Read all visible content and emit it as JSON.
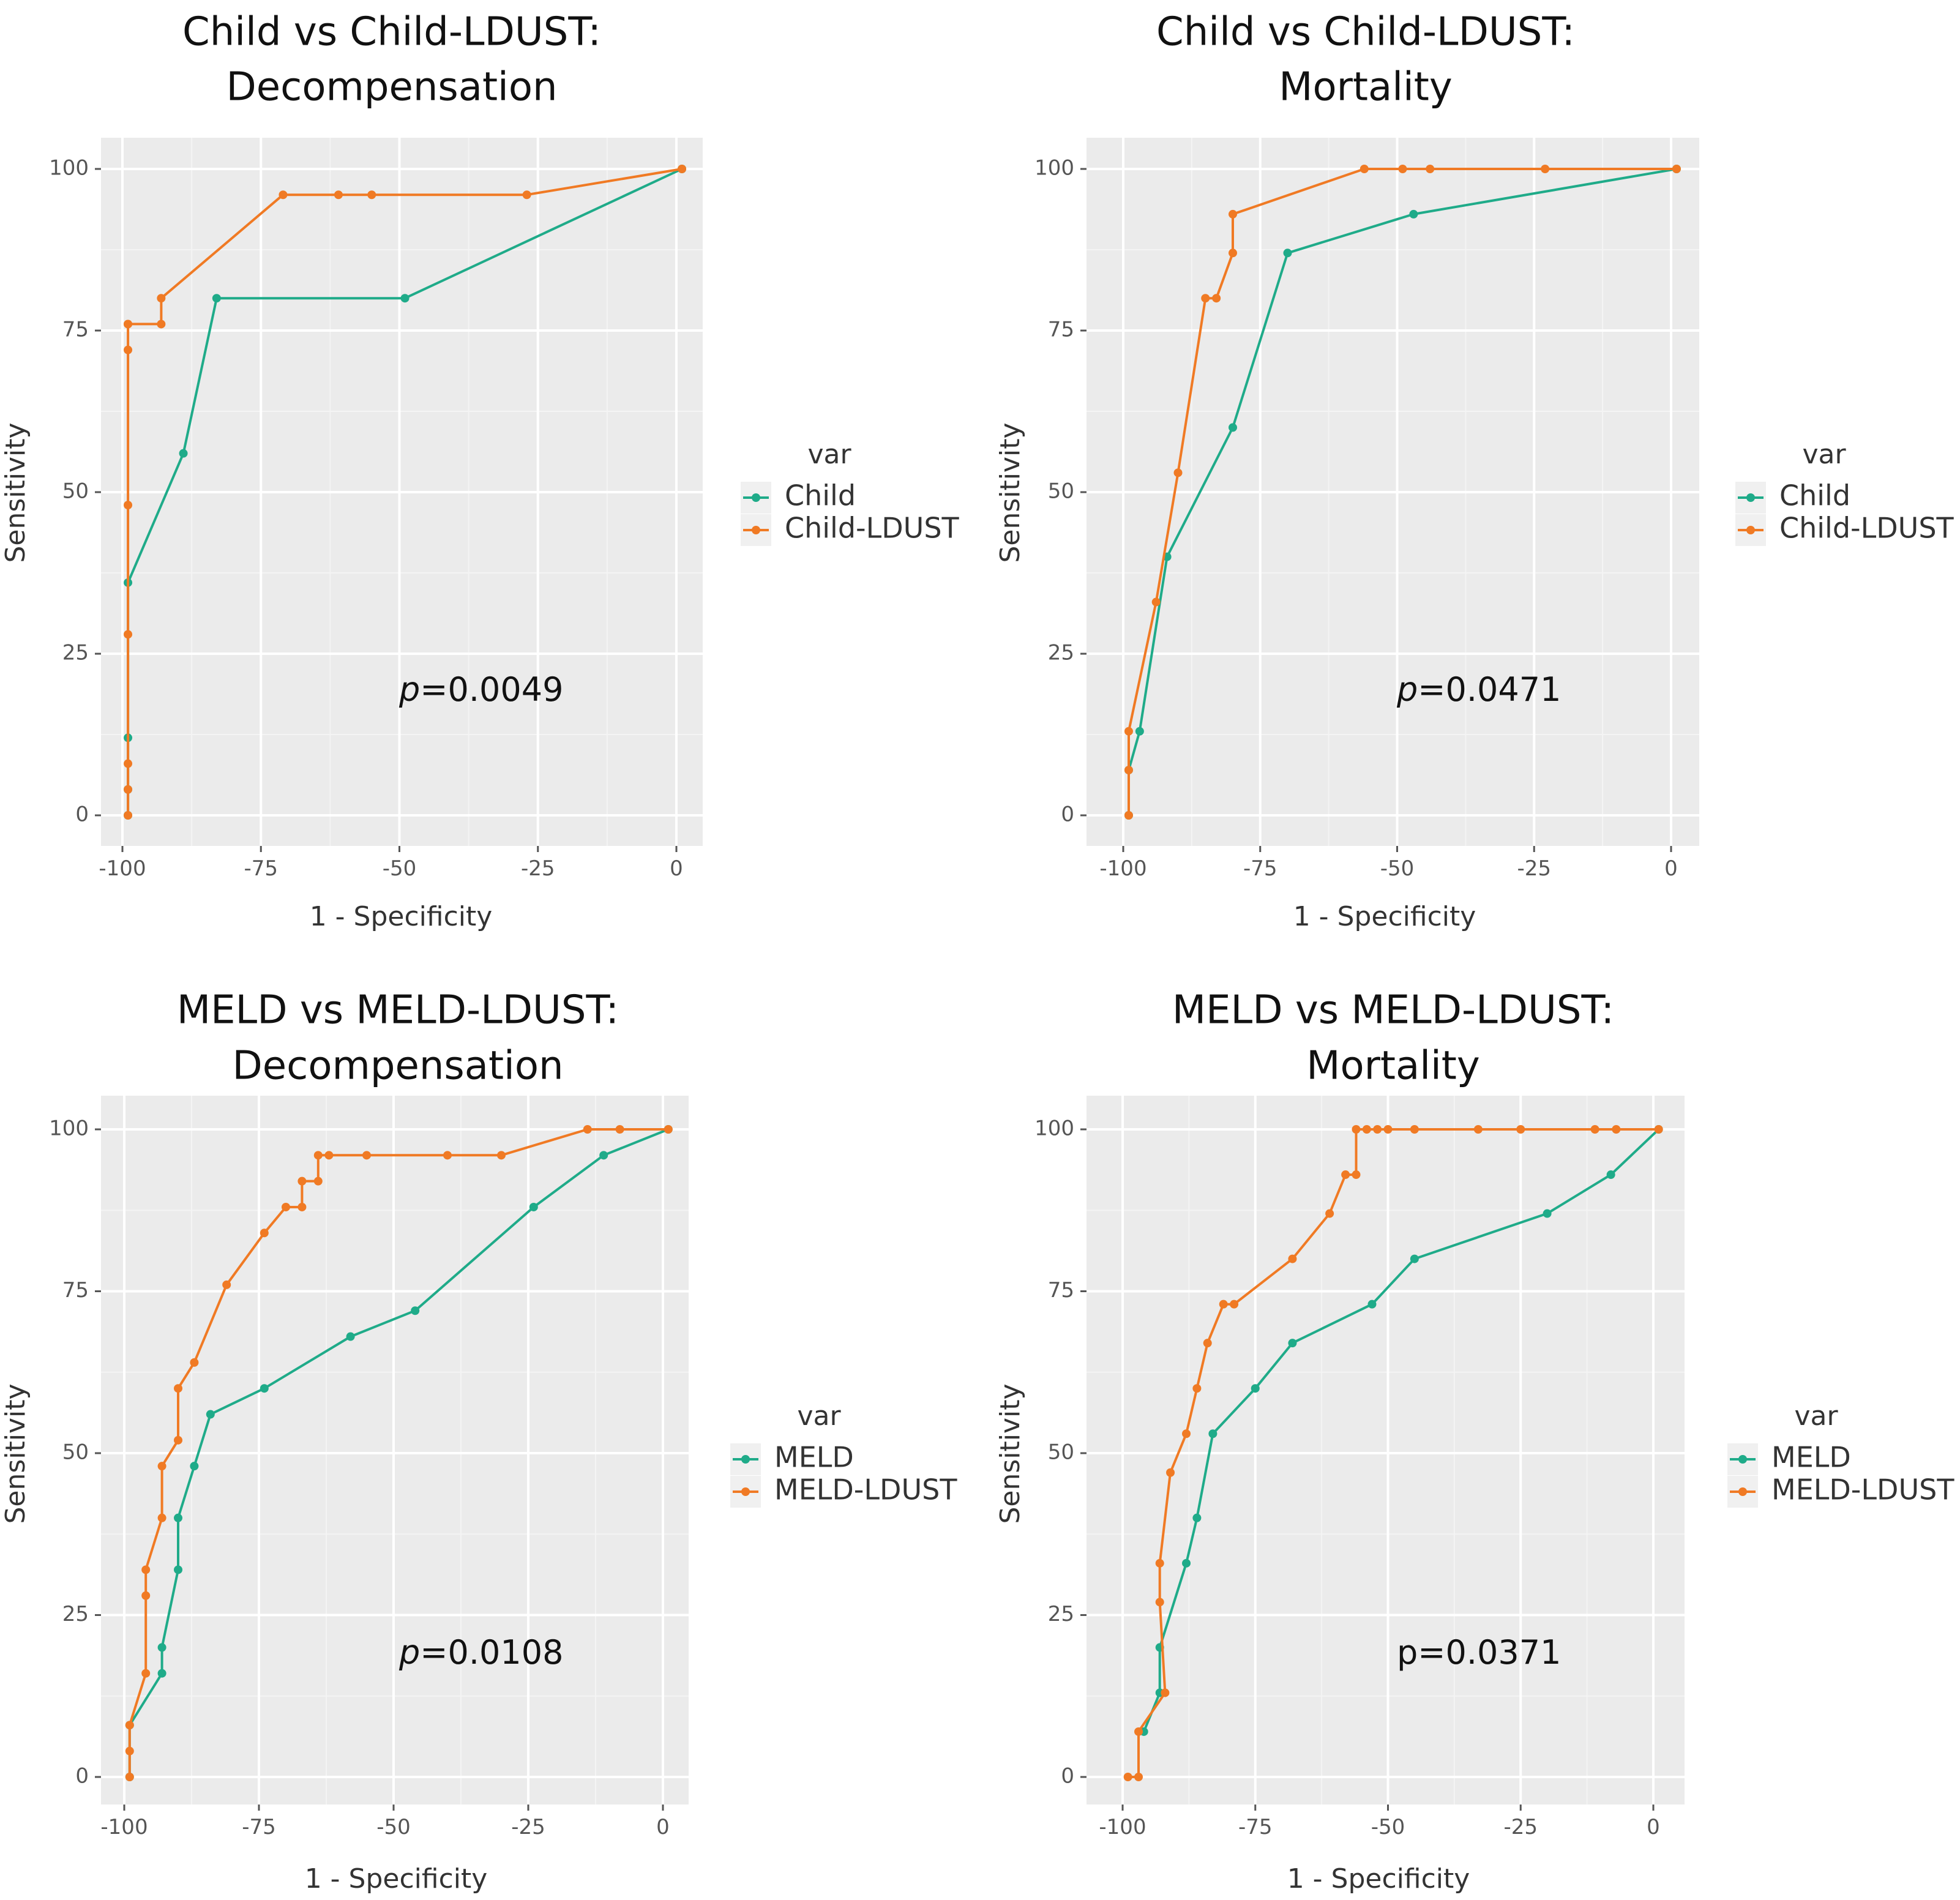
{
  "colors": {
    "series1": "#1fab89",
    "series2": "#f07a24",
    "panel_bg": "#ebebeb",
    "grid_major": "#ffffff",
    "grid_minor": "#f4f4f4"
  },
  "chart_data": [
    {
      "type": "line",
      "title": [
        "Child vs Child-LDUST:",
        "Decompensation"
      ],
      "xlabel": "1 - Specificity",
      "ylabel": "Sensitivity",
      "xlim": [
        -100,
        0
      ],
      "ylim": [
        0,
        100
      ],
      "xticks": [
        -100,
        -75,
        -50,
        -25,
        0
      ],
      "yticks": [
        0,
        25,
        50,
        75,
        100
      ],
      "legend_title": "var",
      "legend": [
        "Child",
        "Child-LDUST"
      ],
      "annotation": {
        "italic": "p",
        "rest": "=0.0049"
      },
      "series": [
        {
          "name": "Child",
          "x": [
            -99,
            -99,
            -99,
            -99,
            -89,
            -83,
            -49,
            1
          ],
          "y": [
            0,
            4,
            12,
            36,
            56,
            80,
            80,
            100
          ]
        },
        {
          "name": "Child-LDUST",
          "x": [
            -99,
            -99,
            -99,
            -99,
            -99,
            -99,
            -99,
            -99,
            -93,
            -93,
            -71,
            -61,
            -55,
            -27,
            1
          ],
          "y": [
            0,
            4,
            8,
            28,
            48,
            72,
            76,
            76,
            76,
            80,
            96,
            96,
            96,
            96,
            100
          ]
        }
      ]
    },
    {
      "type": "line",
      "title": [
        "Child vs Child-LDUST:",
        "Mortality"
      ],
      "xlabel": "1 - Specificity",
      "ylabel": "Sensitivity",
      "xlim": [
        -100,
        0
      ],
      "ylim": [
        0,
        100
      ],
      "xticks": [
        -100,
        -75,
        -50,
        -25,
        0
      ],
      "yticks": [
        0,
        25,
        50,
        75,
        100
      ],
      "legend_title": "var",
      "legend": [
        "Child",
        "Child-LDUST"
      ],
      "annotation": {
        "italic": "p",
        "rest": "=0.0471"
      },
      "series": [
        {
          "name": "Child",
          "x": [
            -99,
            -99,
            -97,
            -92,
            -80,
            -70,
            -47,
            1
          ],
          "y": [
            0,
            7,
            13,
            40,
            60,
            87,
            93,
            100
          ]
        },
        {
          "name": "Child-LDUST",
          "x": [
            -99,
            -99,
            -99,
            -94,
            -90,
            -85,
            -83,
            -80,
            -80,
            -56,
            -49,
            -44,
            -23,
            1
          ],
          "y": [
            0,
            7,
            13,
            33,
            53,
            80,
            80,
            87,
            93,
            100,
            100,
            100,
            100,
            100
          ]
        }
      ]
    },
    {
      "type": "line",
      "title": [
        "MELD vs MELD-LDUST:",
        "Decompensation"
      ],
      "xlabel": "1 - Specificity",
      "ylabel": "Sensitivity",
      "xlim": [
        -100,
        0
      ],
      "ylim": [
        0,
        100
      ],
      "xticks": [
        -100,
        -75,
        -50,
        -25,
        0
      ],
      "yticks": [
        0,
        25,
        50,
        75,
        100
      ],
      "legend_title": "var",
      "legend": [
        "MELD",
        "MELD-LDUST"
      ],
      "annotation": {
        "italic": "p",
        "rest": "=0.0108"
      },
      "series": [
        {
          "name": "MELD",
          "x": [
            -99,
            -99,
            -93,
            -93,
            -90,
            -90,
            -87,
            -84,
            -74,
            -58,
            -46,
            -24,
            -11,
            1
          ],
          "y": [
            0,
            8,
            16,
            20,
            32,
            40,
            48,
            56,
            60,
            68,
            72,
            88,
            96,
            100
          ]
        },
        {
          "name": "MELD-LDUST",
          "x": [
            -99,
            -99,
            -99,
            -96,
            -96,
            -96,
            -93,
            -93,
            -90,
            -90,
            -87,
            -81,
            -74,
            -70,
            -67,
            -67,
            -64,
            -64,
            -62,
            -55,
            -40,
            -30,
            -14,
            -8,
            1
          ],
          "y": [
            0,
            4,
            8,
            16,
            28,
            32,
            40,
            48,
            52,
            60,
            64,
            76,
            84,
            88,
            88,
            92,
            92,
            96,
            96,
            96,
            96,
            96,
            100,
            100,
            100
          ]
        }
      ]
    },
    {
      "type": "line",
      "title": [
        "MELD vs MELD-LDUST:",
        "Mortality"
      ],
      "xlabel": "1 - Specificity",
      "ylabel": "Sensitivity",
      "xlim": [
        -100,
        0
      ],
      "ylim": [
        0,
        100
      ],
      "xticks": [
        -100,
        -75,
        -50,
        -25,
        0
      ],
      "yticks": [
        0,
        25,
        50,
        75,
        100
      ],
      "legend_title": "var",
      "legend": [
        "MELD",
        "MELD-LDUST"
      ],
      "annotation": {
        "italic": "",
        "rest": "p=0.0371"
      },
      "series": [
        {
          "name": "MELD",
          "x": [
            -96,
            -93,
            -93,
            -88,
            -86,
            -83,
            -75,
            -68,
            -53,
            -45,
            -20,
            -8,
            1
          ],
          "y": [
            7,
            13,
            20,
            33,
            40,
            53,
            60,
            67,
            73,
            80,
            87,
            93,
            100
          ]
        },
        {
          "name": "MELD-LDUST",
          "x": [
            -99,
            -97,
            -97,
            -92,
            -93,
            -93,
            -91,
            -88,
            -86,
            -84,
            -81,
            -79,
            -68,
            -61,
            -58,
            -56,
            -56,
            -54,
            -52,
            -50,
            -45,
            -33,
            -25,
            -11,
            -7,
            1
          ],
          "y": [
            0,
            0,
            7,
            13,
            27,
            33,
            47,
            53,
            60,
            67,
            73,
            73,
            80,
            87,
            93,
            93,
            100,
            100,
            100,
            100,
            100,
            100,
            100,
            100,
            100,
            100
          ]
        }
      ]
    }
  ]
}
